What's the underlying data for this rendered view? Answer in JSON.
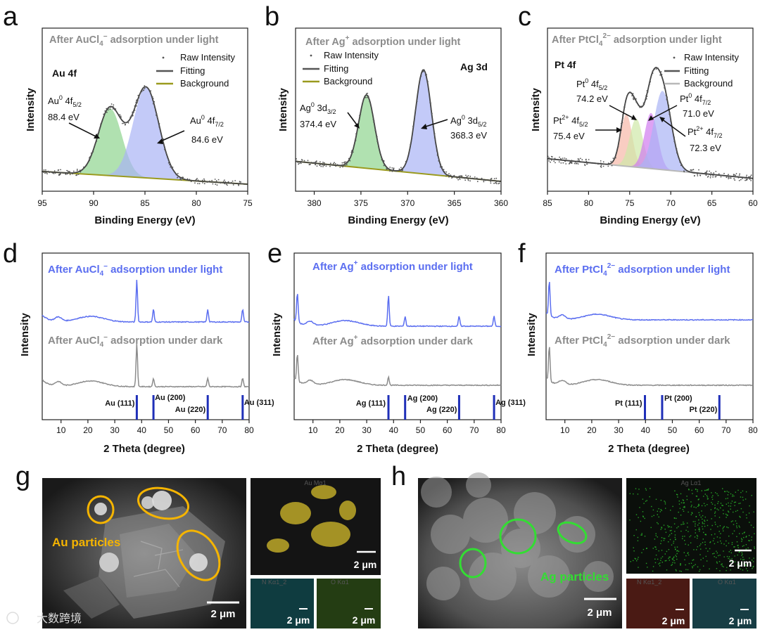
{
  "chart_data": [
    {
      "panel": "a",
      "type": "line",
      "title": "After AuCl4− adsorption under light",
      "xlabel": "Binding Energy (eV)",
      "ylabel": "Intensity",
      "xlim": [
        95,
        75
      ],
      "xticks": [
        95,
        90,
        85,
        80,
        75
      ],
      "element": "Au 4f",
      "legend": [
        "Raw Intensity",
        "Fitting",
        "Background"
      ],
      "peaks": [
        {
          "label": "Au0 4f5/2",
          "value": "88.4 eV",
          "center": 88.4
        },
        {
          "label": "Au0 4f7/2",
          "value": "84.6 eV",
          "center": 84.6
        }
      ]
    },
    {
      "panel": "b",
      "type": "line",
      "title": "After Ag+ adsorption under light",
      "xlabel": "Binding Energy (eV)",
      "ylabel": "Intensity",
      "xlim": [
        382,
        360
      ],
      "xticks": [
        380,
        375,
        370,
        365,
        360
      ],
      "element": "Ag 3d",
      "legend": [
        "Raw Intensity",
        "Fitting",
        "Background"
      ],
      "peaks": [
        {
          "label": "Ag0 3d3/2",
          "value": "374.4 eV",
          "center": 374.4
        },
        {
          "label": "Ag0 3d5/2",
          "value": "368.3 eV",
          "center": 368.3
        }
      ]
    },
    {
      "panel": "c",
      "type": "line",
      "title": "After PtCl42− adsorption under light",
      "xlabel": "Binding Energy (eV)",
      "ylabel": "Intensity",
      "xlim": [
        85,
        60
      ],
      "xticks": [
        85,
        80,
        75,
        70,
        65,
        60
      ],
      "element": "Pt 4f",
      "legend": [
        "Raw Intensity",
        "Fitting",
        "Background"
      ],
      "peaks": [
        {
          "label": "Pt2+ 4f5/2",
          "value": "75.4 eV",
          "center": 75.4
        },
        {
          "label": "Pt0 4f5/2",
          "value": "74.2 eV",
          "center": 74.2
        },
        {
          "label": "Pt0 4f7/2",
          "value": "71.0 eV",
          "center": 71.0
        },
        {
          "label": "Pt2+ 4f7/2",
          "value": "72.3 eV",
          "center": 72.3
        }
      ]
    },
    {
      "panel": "d",
      "type": "line",
      "xlabel": "2 Theta (degree)",
      "ylabel": "Intensity",
      "xlim": [
        3,
        80
      ],
      "xticks": [
        10,
        20,
        30,
        40,
        50,
        60,
        70,
        80
      ],
      "series": [
        {
          "name": "After AuCl4− adsorption under light",
          "peaks": [
            38.2,
            44.4,
            64.6,
            77.6
          ],
          "hump": 21
        },
        {
          "name": "After AuCl4− adsorption under dark",
          "peaks": [
            38.2,
            44.4,
            64.6,
            77.6
          ],
          "hump": 21
        }
      ],
      "reference": [
        {
          "label": "Au (111)",
          "x": 38.2
        },
        {
          "label": "Au (200)",
          "x": 44.4
        },
        {
          "label": "Au (220)",
          "x": 64.6
        },
        {
          "label": "Au (311)",
          "x": 77.6
        }
      ]
    },
    {
      "panel": "e",
      "type": "line",
      "xlabel": "2 Theta (degree)",
      "ylabel": "Intensity",
      "xlim": [
        3,
        80
      ],
      "xticks": [
        10,
        20,
        30,
        40,
        50,
        60,
        70,
        80
      ],
      "series": [
        {
          "name": "After Ag+ adsorption under light",
          "peaks": [
            4.2,
            38.1,
            44.3,
            64.4,
            77.4
          ],
          "hump": 22
        },
        {
          "name": "After Ag+ adsorption under dark",
          "peaks": [
            4.2,
            38.1
          ],
          "hump": 22
        }
      ],
      "reference": [
        {
          "label": "Ag (111)",
          "x": 38.1
        },
        {
          "label": "Ag (200)",
          "x": 44.3
        },
        {
          "label": "Ag (220)",
          "x": 64.4
        },
        {
          "label": "Ag (311)",
          "x": 77.4
        }
      ]
    },
    {
      "panel": "f",
      "type": "line",
      "xlabel": "2 Theta (degree)",
      "ylabel": "Intensity",
      "xlim": [
        3,
        80
      ],
      "xticks": [
        10,
        20,
        30,
        40,
        50,
        60,
        70,
        80
      ],
      "series": [
        {
          "name": "After PtCl42− adsorption under light",
          "peaks": [
            4.2
          ],
          "hump": 22
        },
        {
          "name": "After PtCl42− adsorption under dark",
          "peaks": [
            4.2
          ],
          "hump": 22
        }
      ],
      "reference": [
        {
          "label": "Pt (111)",
          "x": 39.8
        },
        {
          "label": "Pt (200)",
          "x": 46.2
        },
        {
          "label": "Pt (220)",
          "x": 67.5
        }
      ]
    }
  ],
  "panels": {
    "a": "a",
    "b": "b",
    "c": "c",
    "d": "d",
    "e": "e",
    "f": "f",
    "g": "g",
    "h": "h"
  },
  "xps": {
    "a": {
      "title_pre": "After AuCl",
      "title_sub": "4",
      "title_sup": "−",
      "title_post": " adsorption under light",
      "element": "Au 4f",
      "p1_base": "Au",
      "p1_sup": "0",
      "p1_orb": " 4f",
      "p1_sub": "5/2",
      "p1_val": "88.4 eV",
      "p2_base": "Au",
      "p2_sup": "0",
      "p2_orb": " 4f",
      "p2_sub": "7/2",
      "p2_val": "84.6 eV"
    },
    "b": {
      "title_pre": "After Ag",
      "title_sup": "+",
      "title_post": " adsorption under light",
      "element": "Ag 3d",
      "p1_base": "Ag",
      "p1_sup": "0",
      "p1_orb": " 3d",
      "p1_sub": "3/2",
      "p1_val": "374.4 eV",
      "p2_base": "Ag",
      "p2_sup": "0",
      "p2_orb": " 3d",
      "p2_sub": "5/2",
      "p2_val": "368.3 eV"
    },
    "c": {
      "title_pre": "After PtCl",
      "title_sub": "4",
      "title_sup": "2−",
      "title_post": " adsorption under light",
      "element": "Pt 4f",
      "p1_base": "Pt",
      "p1_sup": "0",
      "p1_orb": " 4f",
      "p1_sub": "5/2",
      "p1_val": "74.2 eV",
      "p2_base": "Pt",
      "p2_sup": "0",
      "p2_orb": " 4f",
      "p2_sub": "7/2",
      "p2_val": "71.0 eV",
      "p3_base": "Pt",
      "p3_sup": "2+",
      "p3_orb": " 4f",
      "p3_sub": "5/2",
      "p3_val": "75.4 eV",
      "p4_base": "Pt",
      "p4_sup": "2+",
      "p4_orb": " 4f",
      "p4_sub": "7/2",
      "p4_val": "72.3 eV"
    },
    "legend": {
      "raw": "Raw Intensity",
      "fit": "Fitting",
      "bg": "Background"
    },
    "xlabel": "Binding Energy (eV)",
    "ylabel": "Intensity",
    "ticks_a": [
      "95",
      "90",
      "85",
      "80",
      "75"
    ],
    "ticks_b": [
      "380",
      "375",
      "370",
      "365",
      "360"
    ],
    "ticks_c": [
      "85",
      "80",
      "75",
      "70",
      "65",
      "60"
    ]
  },
  "xrd": {
    "xlabel": "2 Theta (degree)",
    "ylabel": "Intensity",
    "ticks": [
      "10",
      "20",
      "30",
      "40",
      "50",
      "60",
      "70",
      "80"
    ],
    "d": {
      "light_pre": "After AuCl",
      "light_sub": "4",
      "light_sup": "−",
      "light_post": " adsorption under light",
      "dark_pre": "After AuCl",
      "dark_sub": "4",
      "dark_sup": "−",
      "dark_post": " adsorption under dark",
      "refs": [
        "Au (111)",
        "Au (200)",
        "Au (220)",
        "Au (311)"
      ]
    },
    "e": {
      "light_pre": "After Ag",
      "light_sup": "+",
      "light_post": " adsorption under light",
      "dark_pre": "After Ag",
      "dark_sup": "+",
      "dark_post": " adsorption under dark",
      "refs": [
        "Ag (111)",
        "Ag (200)",
        "Ag (220)",
        "Ag (311)"
      ]
    },
    "f": {
      "light_pre": "After PtCl",
      "light_sub": "4",
      "light_sup": "2−",
      "light_post": " adsorption under light",
      "dark_pre": "After PtCl",
      "dark_sub": "4",
      "dark_sup": "2−",
      "dark_post": " adsorption under dark",
      "refs": [
        "Pt (111)",
        "Pt (200)",
        "Pt (220)"
      ]
    }
  },
  "sem": {
    "g": {
      "particles": "Au particles",
      "scale": "2 μm",
      "map1": "Au Mα1",
      "map2": "N Kα1_2",
      "map3": "O Kα1"
    },
    "h": {
      "particles": "Ag particles",
      "scale": "2 μm",
      "map1": "Ag Lα1",
      "map2": "N Kα1_2",
      "map3": "O Kα1"
    }
  },
  "watermark": "大数跨境",
  "colors": {
    "xrd_light": "#5b6ef0",
    "xrd_dark": "#8c8c8c",
    "ref": "#1f2fb8",
    "green_fill": "#8fd48f",
    "blue_fill": "#a9b4f5",
    "au_ring": "#f5b400",
    "ag_ring": "#33dd33"
  }
}
